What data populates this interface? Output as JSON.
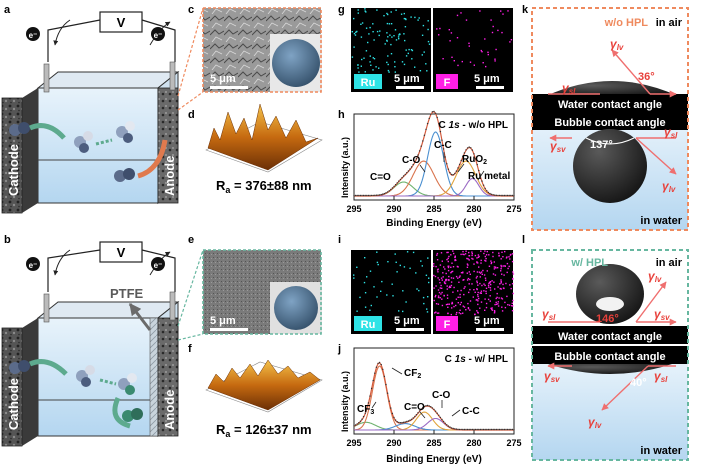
{
  "panels": {
    "a": {
      "label": "a",
      "voltage": "V",
      "electron_left": "e⁻",
      "electron_right": "e⁻",
      "cathode": "Cathode",
      "anode": "Anode"
    },
    "b": {
      "label": "b",
      "voltage": "V",
      "electron_left": "e⁻",
      "electron_right": "e⁻",
      "cathode": "Cathode",
      "anode": "Anode",
      "ptfe": "PTFE"
    },
    "c": {
      "label": "c",
      "scale": "5 μm"
    },
    "d": {
      "label": "d",
      "roughness_prefix": "R",
      "roughness_sub": "a",
      "roughness_value": " = 376±88 nm"
    },
    "e": {
      "label": "e",
      "scale": "5 μm"
    },
    "f": {
      "label": "f",
      "roughness_prefix": "R",
      "roughness_sub": "a",
      "roughness_value": " = 126±37 nm"
    },
    "g": {
      "label": "g",
      "ru_tag": "Ru",
      "f_tag": "F",
      "scale": "5 μm"
    },
    "i": {
      "label": "i",
      "ru_tag": "Ru",
      "f_tag": "F",
      "scale": "5 μm"
    },
    "h": {
      "label": "h",
      "title_prefix": "C ",
      "title_italic": "1s",
      "title_suffix": " - w/o HPL",
      "ylabel": "Intensity (a.u.)",
      "xlabel": "Binding Energy (eV)",
      "annotations": {
        "c_eq_o": "C=O",
        "c_o": "C-O",
        "c_c": "C-C",
        "ruo2": "RuO",
        "ruo2_sub": "2",
        "ru_metal": "Ru metal"
      }
    },
    "j": {
      "label": "j",
      "title_prefix": "C ",
      "title_italic": "1s",
      "title_suffix": " - w/ HPL",
      "ylabel": "Intensity (a.u.)",
      "xlabel": "Binding Energy (eV)",
      "annotations": {
        "cf3": "CF",
        "cf3_sub": "3",
        "cf2": "CF",
        "cf2_sub": "2",
        "c_eq_o": "C=O",
        "c_o": "C-O",
        "c_c": "C-C"
      }
    },
    "k": {
      "label": "k",
      "condition": "w/o HPL",
      "in_air": "in air",
      "in_water": "in water",
      "water_angle_label": "Water contact angle",
      "bubble_angle_label": "Bubble contact angle",
      "water_angle": "36°",
      "bubble_angle": "137°",
      "gamma": "γ",
      "lv": "lv",
      "sl": "sl",
      "sv": "sv"
    },
    "l": {
      "label": "l",
      "condition": "w/ HPL",
      "in_air": "in air",
      "in_water": "in water",
      "water_angle_label": "Water contact angle",
      "bubble_angle_label": "Bubble contact angle",
      "water_angle": "146°",
      "bubble_angle": "40°",
      "gamma": "γ",
      "lv": "lv",
      "sl": "sl",
      "sv": "sv"
    }
  },
  "colors": {
    "orange": "#ef8a5e",
    "teal": "#67b7a0",
    "ru_cyan": "#2ee3e6",
    "f_magenta": "#ff1fe6",
    "water_blue": "#bcd9f2",
    "arrow_red": "#ef6f6f",
    "gamma_red": "#e8413b"
  },
  "chart_data": [
    {
      "type": "line",
      "title": "C 1s - w/o HPL",
      "xlabel": "Binding Energy (eV)",
      "ylabel": "Intensity (a.u.)",
      "xlim": [
        295,
        275
      ],
      "x_ticks": [
        "295",
        "290",
        "285",
        "280",
        "275"
      ],
      "series": [
        {
          "name": "C=O",
          "peaks": [
            {
              "center": 288.8,
              "height": 0.12,
              "width": 1.2
            }
          ]
        },
        {
          "name": "C-O",
          "peaks": [
            {
              "center": 286.3,
              "height": 0.3,
              "width": 1.3
            }
          ]
        },
        {
          "name": "C-C",
          "peaks": [
            {
              "center": 284.8,
              "height": 0.55,
              "width": 1.0
            }
          ]
        },
        {
          "name": "RuO2",
          "peaks": [
            {
              "center": 281.0,
              "height": 0.3,
              "width": 1.2
            }
          ]
        },
        {
          "name": "Ru metal",
          "peaks": [
            {
              "center": 280.2,
              "height": 0.15,
              "width": 0.8
            }
          ]
        }
      ]
    },
    {
      "type": "line",
      "title": "C 1s - w/ HPL",
      "xlabel": "Binding Energy (eV)",
      "ylabel": "Intensity (a.u.)",
      "xlim": [
        295,
        275
      ],
      "x_ticks": [
        "295",
        "290",
        "285",
        "280",
        "275"
      ],
      "series": [
        {
          "name": "CF3",
          "peaks": [
            {
              "center": 293.5,
              "height": 0.12,
              "width": 1.2
            }
          ]
        },
        {
          "name": "CF2",
          "peaks": [
            {
              "center": 291.8,
              "height": 1.0,
              "width": 0.9
            }
          ]
        },
        {
          "name": "C=O",
          "peaks": [
            {
              "center": 288.6,
              "height": 0.1,
              "width": 1.2
            }
          ]
        },
        {
          "name": "C-O",
          "peaks": [
            {
              "center": 286.2,
              "height": 0.28,
              "width": 1.0
            }
          ]
        },
        {
          "name": "C-C",
          "peaks": [
            {
              "center": 284.8,
              "height": 0.18,
              "width": 1.0
            }
          ]
        }
      ]
    }
  ]
}
